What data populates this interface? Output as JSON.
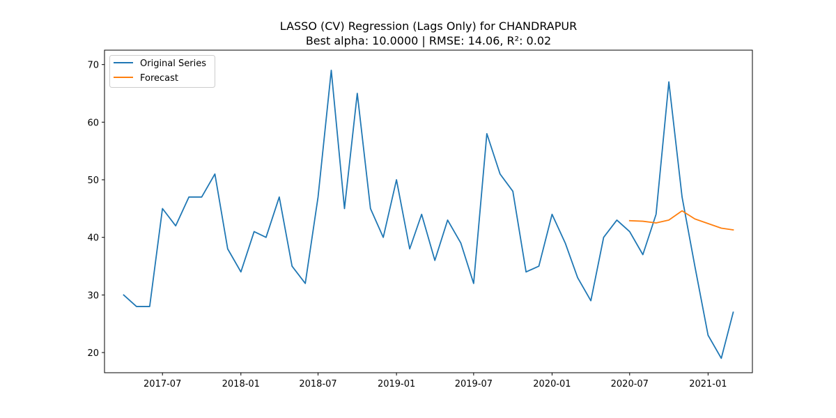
{
  "chart_data": {
    "type": "line",
    "title": "LASSO (CV) Regression (Lags Only) for CHANDRAPUR",
    "subtitle": "Best alpha: 10.0000 | RMSE: 14.06, R²: 0.02",
    "xlabel": "",
    "ylabel": "",
    "xlim": [
      "2017-02-15",
      "2021-04-15"
    ],
    "ylim": [
      16.5,
      72.5
    ],
    "x_ticks": [
      "2017-07-01",
      "2018-01-01",
      "2018-07-01",
      "2019-01-01",
      "2019-07-01",
      "2020-01-01",
      "2020-07-01",
      "2021-01-01"
    ],
    "x_tick_labels": [
      "2017-07",
      "2018-01",
      "2018-07",
      "2019-01",
      "2019-07",
      "2020-01",
      "2020-07",
      "2021-01"
    ],
    "y_ticks": [
      20,
      30,
      40,
      50,
      60,
      70
    ],
    "grid": false,
    "legend": "upper-left",
    "series": [
      {
        "name": "Original Series",
        "color": "#1f77b4",
        "x": [
          "2017-04-01",
          "2017-05-01",
          "2017-06-01",
          "2017-07-01",
          "2017-08-01",
          "2017-09-01",
          "2017-10-01",
          "2017-11-01",
          "2017-12-01",
          "2018-01-01",
          "2018-02-01",
          "2018-03-01",
          "2018-04-01",
          "2018-05-01",
          "2018-06-01",
          "2018-07-01",
          "2018-08-01",
          "2018-09-01",
          "2018-10-01",
          "2018-11-01",
          "2018-12-01",
          "2019-01-01",
          "2019-02-01",
          "2019-03-01",
          "2019-04-01",
          "2019-05-01",
          "2019-06-01",
          "2019-07-01",
          "2019-08-01",
          "2019-09-01",
          "2019-10-01",
          "2019-11-01",
          "2019-12-01",
          "2020-01-01",
          "2020-02-01",
          "2020-03-01",
          "2020-04-01",
          "2020-05-01",
          "2020-06-01",
          "2020-07-01",
          "2020-08-01",
          "2020-09-01",
          "2020-10-01",
          "2020-11-01",
          "2020-12-01",
          "2021-01-01",
          "2021-02-01",
          "2021-03-01"
        ],
        "values": [
          30,
          28,
          28,
          45,
          42,
          47,
          47,
          51,
          38,
          34,
          41,
          40,
          47,
          35,
          32,
          47,
          69,
          45,
          65,
          45,
          40,
          50,
          38,
          44,
          36,
          43,
          39,
          32,
          58,
          51,
          48,
          34,
          35,
          44,
          39,
          33,
          29,
          40,
          43,
          41,
          37,
          44,
          67,
          47,
          35,
          23,
          19,
          27
        ]
      },
      {
        "name": "Forecast",
        "color": "#ff7f0e",
        "x": [
          "2020-07-01",
          "2020-08-01",
          "2020-09-01",
          "2020-10-01",
          "2020-11-01",
          "2020-12-01",
          "2021-01-01",
          "2021-02-01",
          "2021-03-01"
        ],
        "values": [
          42.9,
          42.8,
          42.5,
          43.0,
          44.6,
          43.2,
          42.4,
          41.6,
          41.3
        ]
      }
    ]
  }
}
